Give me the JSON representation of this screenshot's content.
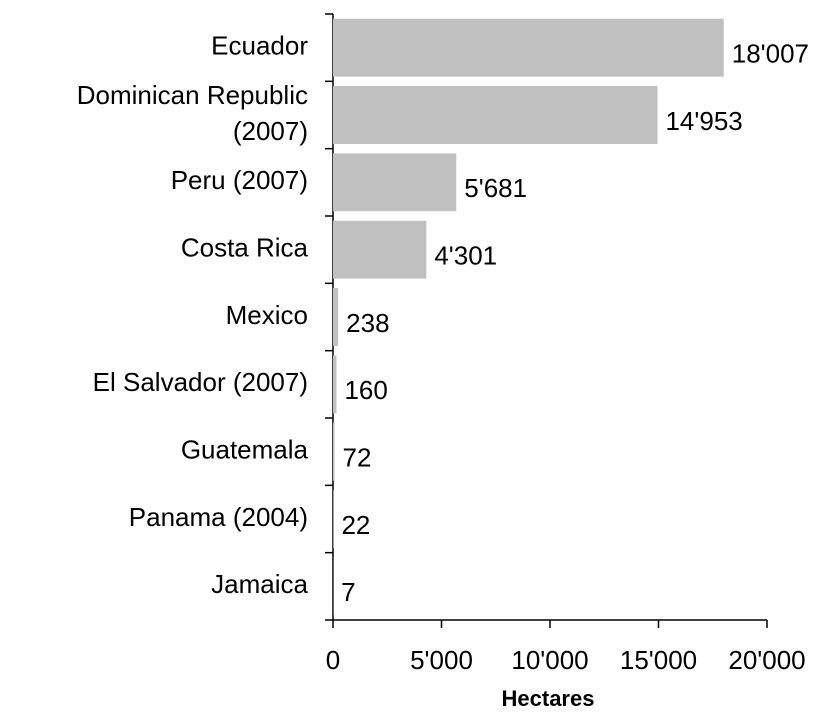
{
  "chart_data": {
    "type": "bar",
    "orientation": "horizontal",
    "categories": [
      "Ecuador",
      "Dominican Republic (2007)",
      "Peru (2007)",
      "Costa Rica",
      "Mexico",
      "El Salvador (2007)",
      "Guatemala",
      "Panama (2004)",
      "Jamaica"
    ],
    "values": [
      18007,
      14953,
      5681,
      4301,
      238,
      160,
      72,
      22,
      7
    ],
    "value_labels": [
      "18'007",
      "14'953",
      "5'681",
      "4'301",
      "238",
      "160",
      "72",
      "22",
      "7"
    ],
    "color": "#c0c0c0",
    "xlabel": "Hectares",
    "xlim": [
      0,
      20000
    ],
    "xticks": [
      0,
      {
        "value": 5000,
        "label": "5'000"
      },
      {
        "value": 10000,
        "label": "10'000"
      },
      {
        "value": 15000,
        "label": "15'000"
      },
      {
        "value": 20000,
        "label": "20'000"
      }
    ],
    "grid": false
  }
}
